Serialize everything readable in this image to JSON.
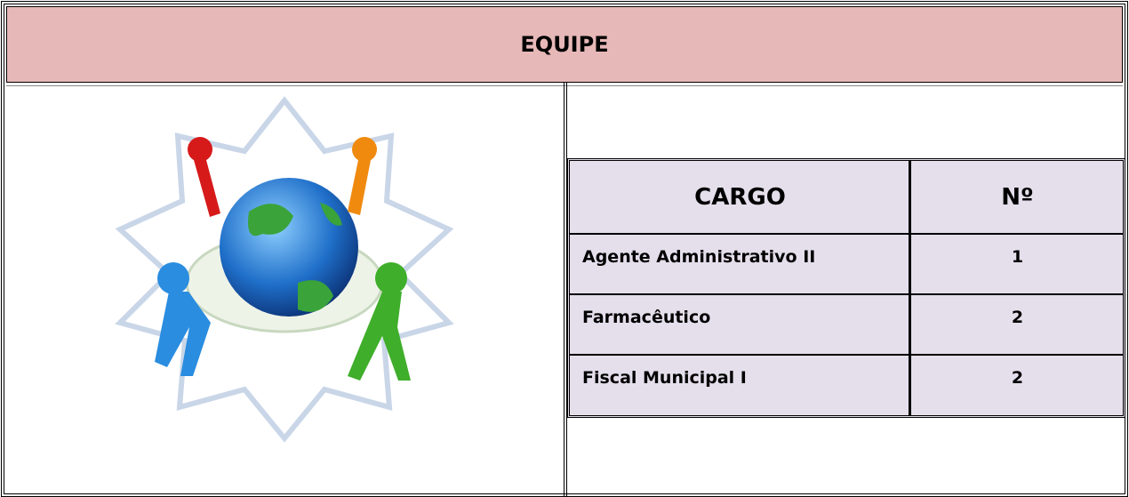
{
  "header": {
    "title": "EQUIPE"
  },
  "table": {
    "columns": [
      "CARGO",
      "Nº"
    ],
    "rows": [
      [
        "Agente Administrativo II",
        1
      ],
      [
        "Farmacêutico",
        2
      ],
      [
        "Fiscal Municipal I",
        2
      ]
    ]
  }
}
